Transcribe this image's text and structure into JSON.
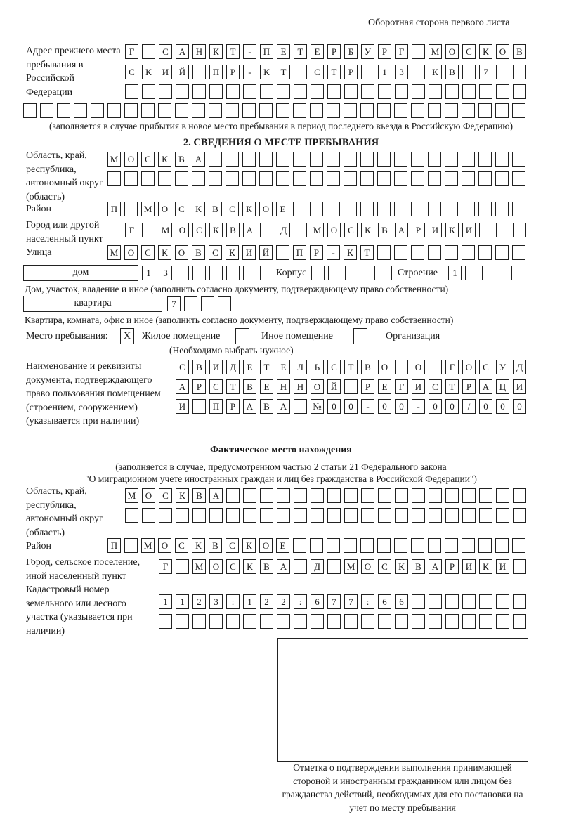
{
  "header": {
    "title": "Оборотная сторона первого листа"
  },
  "prev_address": {
    "label": "Адрес прежнего места пребывания в Российской Федерации",
    "rows": [
      [
        "Г",
        "",
        "С",
        "А",
        "Н",
        "К",
        "Т",
        "-",
        "П",
        "Е",
        "Т",
        "Е",
        "Р",
        "Б",
        "У",
        "Р",
        "Г",
        "",
        "М",
        "О",
        "С",
        "К",
        "О",
        "В"
      ],
      [
        "С",
        "К",
        "И",
        "Й",
        "",
        "П",
        "Р",
        "-",
        "К",
        "Т",
        "",
        "С",
        "Т",
        "Р",
        "",
        "1",
        "3",
        "",
        "К",
        "В",
        "",
        "7",
        "",
        ""
      ],
      [
        "",
        "",
        "",
        "",
        "",
        "",
        "",
        "",
        "",
        "",
        "",
        "",
        "",
        "",
        "",
        "",
        "",
        "",
        "",
        "",
        "",
        "",
        "",
        ""
      ],
      [
        "",
        "",
        "",
        "",
        "",
        "",
        "",
        "",
        "",
        "",
        "",
        "",
        "",
        "",
        "",
        "",
        "",
        "",
        "",
        "",
        "",
        "",
        "",
        "",
        "",
        "",
        "",
        "",
        "",
        ""
      ]
    ],
    "note": "(заполняется в случае прибытия в новое место пребывания в период последнего въезда в Российскую Федерацию)"
  },
  "section2": {
    "title": "2. СВЕДЕНИЯ О МЕСТЕ ПРЕБЫВАНИЯ",
    "region_label": "Область, край, республика, автономный округ (область)",
    "region_rows": [
      [
        "М",
        "О",
        "С",
        "К",
        "В",
        "А",
        "",
        "",
        "",
        "",
        "",
        "",
        "",
        "",
        "",
        "",
        "",
        "",
        "",
        "",
        "",
        "",
        "",
        "",
        ""
      ],
      [
        "",
        "",
        "",
        "",
        "",
        "",
        "",
        "",
        "",
        "",
        "",
        "",
        "",
        "",
        "",
        "",
        "",
        "",
        "",
        "",
        "",
        "",
        "",
        "",
        ""
      ]
    ],
    "district_label": "Район",
    "district": [
      "П",
      "",
      "М",
      "О",
      "С",
      "К",
      "В",
      "С",
      "К",
      "О",
      "Е",
      "",
      "",
      "",
      "",
      "",
      "",
      "",
      "",
      "",
      "",
      "",
      "",
      "",
      ""
    ],
    "city_label": "Город или другой населенный пункт",
    "city": [
      "Г",
      "",
      "М",
      "О",
      "С",
      "К",
      "В",
      "А",
      "",
      "Д",
      "",
      "М",
      "О",
      "С",
      "К",
      "В",
      "А",
      "Р",
      "И",
      "К",
      "И",
      "",
      "",
      ""
    ],
    "street_label": "Улица",
    "street": [
      "М",
      "О",
      "С",
      "К",
      "О",
      "В",
      "С",
      "К",
      "И",
      "Й",
      "",
      "П",
      "Р",
      "-",
      "К",
      "Т",
      "",
      "",
      "",
      "",
      "",
      "",
      "",
      "",
      ""
    ],
    "house_type": "дом",
    "house": [
      "1",
      "3",
      "",
      "",
      "",
      "",
      "",
      ""
    ],
    "korpus_label": "Корпус",
    "korpus": [
      "",
      "",
      "",
      "",
      ""
    ],
    "building_label": "Строение",
    "building": [
      "1",
      "",
      "",
      ""
    ],
    "house_note": "Дом, участок, владение и иное (заполнить согласно документу, подтверждающему право собственности)",
    "flat_type": "квартира",
    "flat": [
      "7",
      "",
      "",
      ""
    ],
    "flat_note": "Квартира, комната, офис и иное (заполнить согласно документу, подтверждающему право собственности)",
    "stay_label": "Место пребывания:",
    "stay_options": [
      {
        "label": "Жилое помещение",
        "mark": "Х",
        "checked": true
      },
      {
        "label": "Иное помещение",
        "mark": "",
        "checked": false
      },
      {
        "label": "Организация",
        "mark": "",
        "checked": false
      }
    ],
    "stay_note": "(Необходимо выбрать нужное)",
    "doc_label": "Наименование и реквизиты документа, подтверждающего право пользования помещением (строением, сооружением) (указывается при наличии)",
    "doc_rows": [
      [
        "С",
        "В",
        "И",
        "Д",
        "Е",
        "Т",
        "Е",
        "Л",
        "Ь",
        "С",
        "Т",
        "В",
        "О",
        "",
        "О",
        "",
        "Г",
        "О",
        "С",
        "У",
        "Д"
      ],
      [
        "А",
        "Р",
        "С",
        "Т",
        "В",
        "Е",
        "Н",
        "Н",
        "О",
        "Й",
        "",
        "Р",
        "Е",
        "Г",
        "И",
        "С",
        "Т",
        "Р",
        "А",
        "Ц",
        "И"
      ],
      [
        "И",
        "",
        "П",
        "Р",
        "А",
        "В",
        "А",
        "",
        "№",
        "0",
        "0",
        "-",
        "0",
        "0",
        "-",
        "0",
        "0",
        "/",
        "0",
        "0",
        "0"
      ]
    ]
  },
  "actual": {
    "title": "Фактическое место нахождения",
    "note1": "(заполняется в случае, предусмотренном частью 2 статьи 21 Федерального закона",
    "note2": "\"О миграционном учете иностранных граждан и лиц без гражданства в Российской Федерации\")",
    "region_label": "Область, край, республика, автономный округ (область)",
    "region_rows": [
      [
        "М",
        "О",
        "С",
        "К",
        "В",
        "А",
        "",
        "",
        "",
        "",
        "",
        "",
        "",
        "",
        "",
        "",
        "",
        "",
        "",
        "",
        "",
        "",
        "",
        ""
      ],
      [
        "",
        "",
        "",
        "",
        "",
        "",
        "",
        "",
        "",
        "",
        "",
        "",
        "",
        "",
        "",
        "",
        "",
        "",
        "",
        "",
        "",
        "",
        "",
        ""
      ]
    ],
    "district_label": "Район",
    "district": [
      "П",
      "",
      "М",
      "О",
      "С",
      "К",
      "В",
      "С",
      "К",
      "О",
      "Е",
      "",
      "",
      "",
      "",
      "",
      "",
      "",
      "",
      "",
      "",
      "",
      "",
      "",
      ""
    ],
    "city_label": "Город, сельское поселение, иной населенный пункт",
    "city": [
      "Г",
      "",
      "М",
      "О",
      "С",
      "К",
      "В",
      "А",
      "",
      "Д",
      "",
      "М",
      "О",
      "С",
      "К",
      "В",
      "А",
      "Р",
      "И",
      "К",
      "И",
      ""
    ],
    "cadastral_label": "Кадастровый номер земельного или лесного участка (указывается при наличии)",
    "cadastral_rows": [
      [
        "1",
        "1",
        "2",
        "3",
        ":",
        "1",
        "2",
        "2",
        ":",
        "6",
        "7",
        "7",
        ":",
        "6",
        "6",
        "",
        "",
        "",
        "",
        "",
        "",
        ""
      ],
      [
        "",
        "",
        "",
        "",
        "",
        "",
        "",
        "",
        "",
        "",
        "",
        "",
        "",
        "",
        "",
        "",
        "",
        "",
        "",
        "",
        "",
        ""
      ]
    ]
  },
  "stamp": {
    "caption": "Отметка о подтверждении выполнения принимающей стороной и иностранным гражданином или лицом без гражданства действий, необходимых для его постановки на учет по месту пребывания"
  }
}
